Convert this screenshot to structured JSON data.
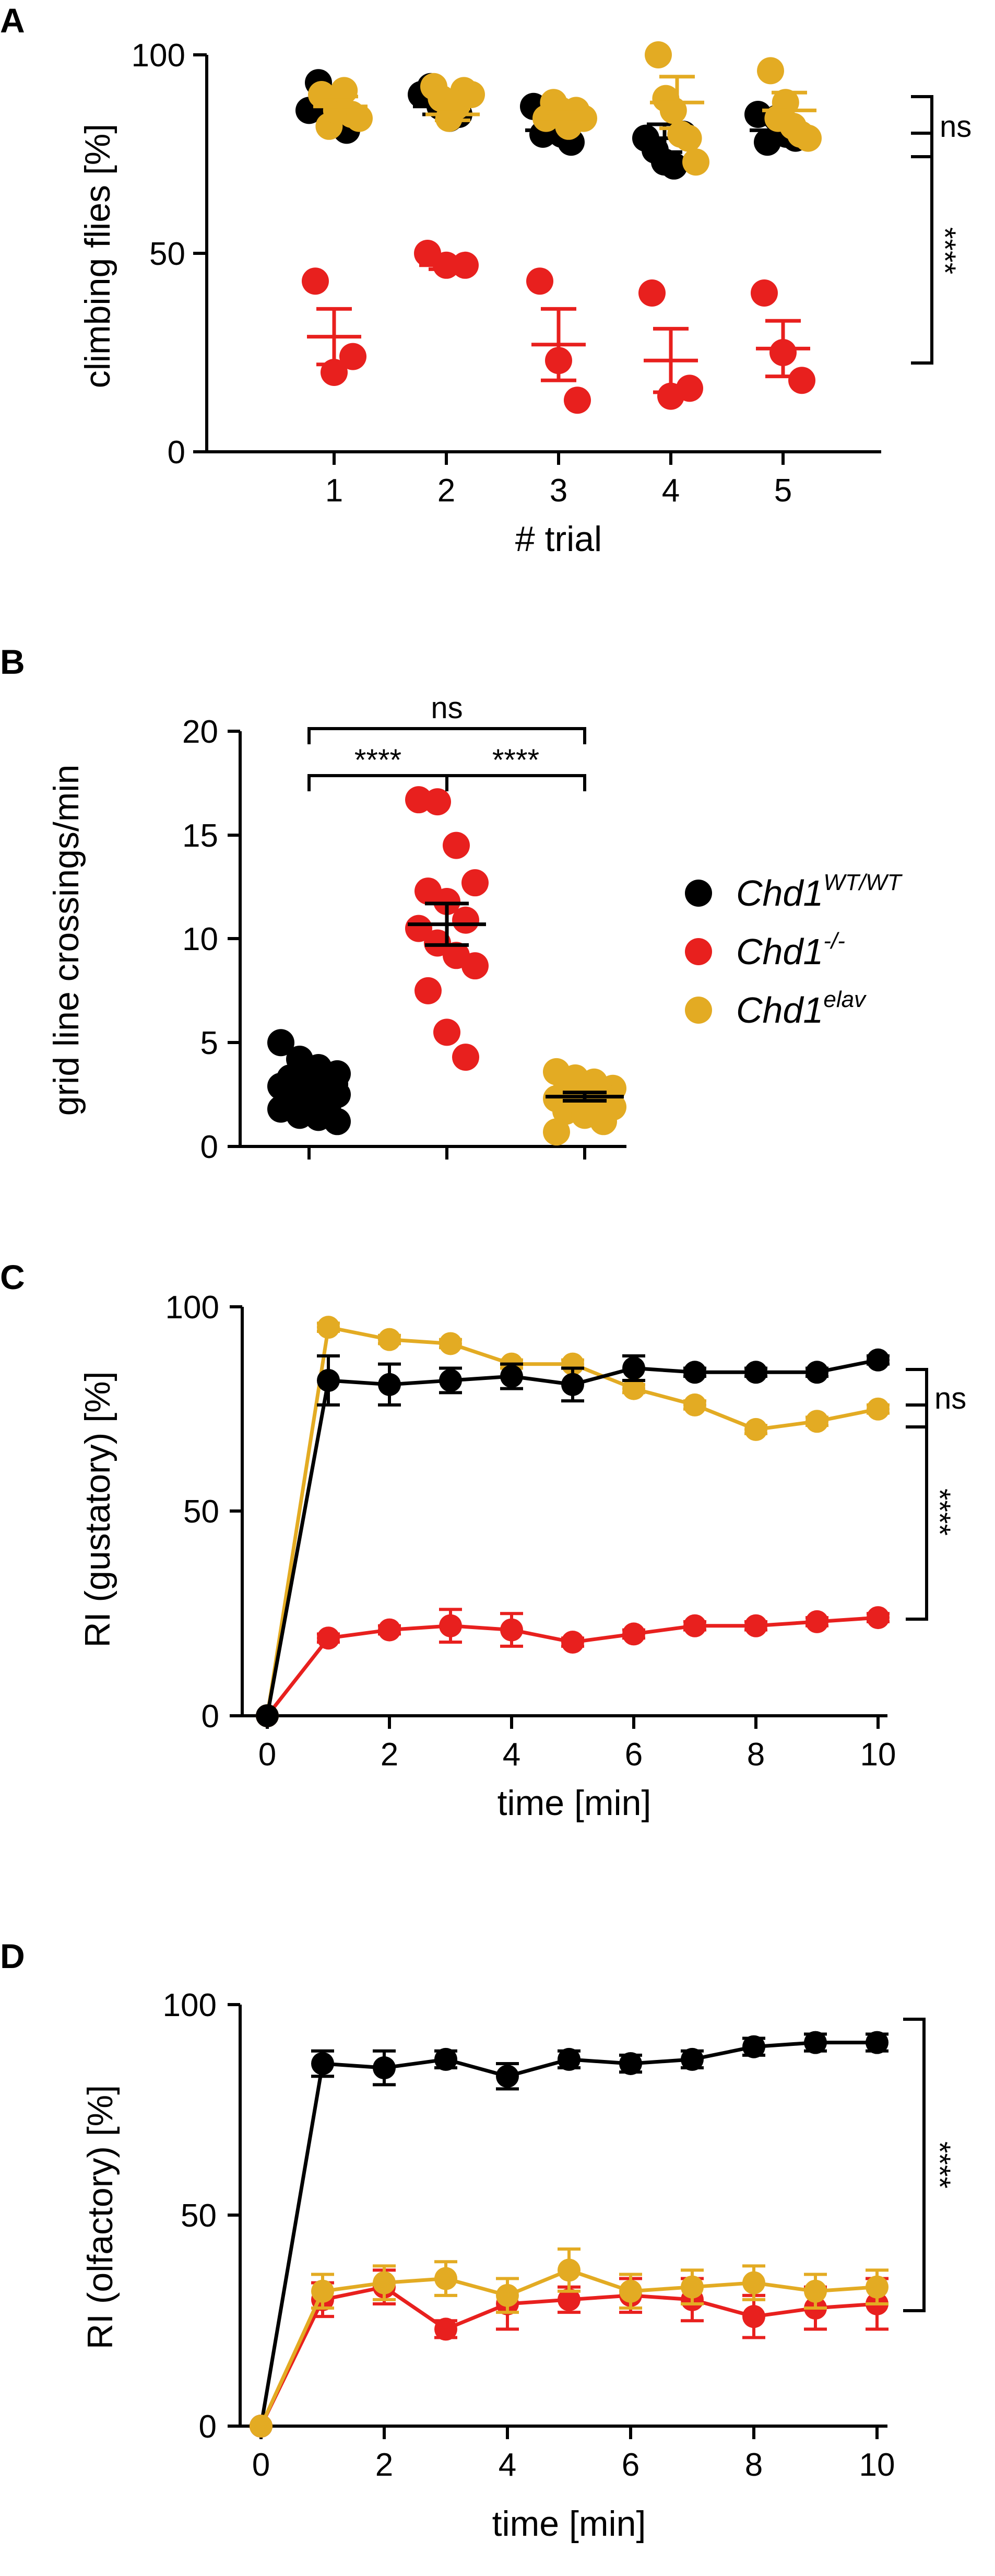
{
  "series_colors": {
    "WT": "#000000",
    "KO": "#e8201e",
    "ELAV": "#e3ab23"
  },
  "legend": [
    {
      "key": "WT",
      "base": "Chd1",
      "sup": "WT/WT"
    },
    {
      "key": "KO",
      "base": "Chd1",
      "sup": "-/-"
    },
    {
      "key": "ELAV",
      "base": "Chd1",
      "sup": "elav"
    }
  ],
  "chart_data": [
    {
      "panel": "A",
      "type": "scatter",
      "title": "",
      "xlabel": "# trial",
      "ylabel": "climbing flies [%]",
      "ylim": [
        0,
        100
      ],
      "yticks": [
        0,
        50,
        100
      ],
      "categories": [
        "1",
        "2",
        "3",
        "4",
        "5"
      ],
      "series": [
        {
          "key": "WT",
          "points": [
            [
              86,
              93,
              85,
              84,
              81
            ],
            [
              90,
              92,
              87,
              84,
              85
            ],
            [
              87,
              80,
              83,
              80,
              78
            ],
            [
              79,
              76,
              73,
              72,
              80
            ],
            [
              85,
              78,
              84,
              80,
              79
            ]
          ],
          "mean": [
            86,
            87,
            81,
            79,
            81
          ],
          "sem": [
            1.5,
            2,
            1.5,
            3.5,
            1.5
          ]
        },
        {
          "key": "KO",
          "points": [
            [
              43,
              20,
              24
            ],
            [
              50,
              47,
              47
            ],
            [
              43,
              23,
              13
            ],
            [
              40,
              14,
              16
            ],
            [
              40,
              25,
              18
            ]
          ],
          "mean": [
            29,
            47,
            27,
            23,
            26
          ],
          "sem": [
            7,
            1,
            9,
            8,
            7
          ]
        },
        {
          "key": "ELAV",
          "points": [
            [
              90,
              82,
              86,
              91,
              85,
              84
            ],
            [
              92,
              89,
              84,
              87,
              91,
              90
            ],
            [
              84,
              88,
              86,
              82,
              86,
              84
            ],
            [
              100,
              89,
              86,
              80,
              79,
              73
            ],
            [
              96,
              84,
              88,
              82,
              80,
              79
            ]
          ],
          "mean": [
            87,
            85,
            84,
            88,
            86
          ],
          "sem": [
            2.5,
            1.5,
            1.5,
            6.5,
            4.5
          ]
        }
      ],
      "annotations": [
        {
          "text": "ns",
          "between": [
            "WT",
            "ELAV"
          ]
        },
        {
          "text": "****",
          "between": [
            "WT/ELAV",
            "KO"
          ]
        }
      ]
    },
    {
      "panel": "B",
      "type": "scatter",
      "title": "",
      "xlabel": "",
      "ylabel": "grid line crossings/min",
      "ylim": [
        0,
        20
      ],
      "yticks": [
        0,
        5,
        10,
        15,
        20
      ],
      "categories": [
        "Chd1 WT/WT",
        "Chd1 -/-",
        "Chd1 elav"
      ],
      "series": [
        {
          "key": "WT",
          "values": [
            5.0,
            4.2,
            3.8,
            3.5,
            3.3,
            3.2,
            3.0,
            2.9,
            2.8,
            2.6,
            2.5,
            2.4,
            2.2,
            2.0,
            1.8,
            1.5,
            1.4,
            1.2
          ],
          "mean": 3.0,
          "sem": 0.3
        },
        {
          "key": "KO",
          "values": [
            16.7,
            16.6,
            14.5,
            12.7,
            12.3,
            11.8,
            10.9,
            10.5,
            9.8,
            9.2,
            8.7,
            7.5,
            5.5,
            4.3
          ],
          "mean": 10.7,
          "sem": 1.0
        },
        {
          "key": "ELAV",
          "values": [
            3.6,
            3.3,
            3.1,
            2.8,
            2.7,
            2.5,
            2.4,
            2.3,
            2.2,
            2.0,
            1.9,
            1.7,
            1.5,
            1.2,
            0.7
          ],
          "mean": 2.4,
          "sem": 0.2
        }
      ],
      "annotations": [
        {
          "text": "****",
          "between": [
            "Chd1 WT/WT",
            "Chd1 -/-"
          ]
        },
        {
          "text": "****",
          "between": [
            "Chd1 -/-",
            "Chd1 elav"
          ]
        },
        {
          "text": "ns",
          "between": [
            "Chd1 WT/WT",
            "Chd1 elav"
          ]
        }
      ]
    },
    {
      "panel": "C",
      "type": "line",
      "title": "",
      "xlabel": "time [min]",
      "ylabel": "RI (gustatory) [%]",
      "xlim": [
        0,
        10
      ],
      "xticks": [
        0,
        2,
        4,
        6,
        8,
        10
      ],
      "ylim": [
        0,
        100
      ],
      "yticks": [
        0,
        50,
        100
      ],
      "x": [
        0,
        1,
        2,
        3,
        4,
        5,
        6,
        7,
        8,
        9,
        10
      ],
      "series": [
        {
          "key": "WT",
          "values": [
            0,
            82,
            81,
            82,
            83,
            81,
            85,
            84,
            84,
            84,
            87
          ],
          "err": [
            0,
            6,
            5,
            3,
            3,
            4,
            3,
            1,
            1,
            1,
            1
          ]
        },
        {
          "key": "ELAV",
          "values": [
            0,
            95,
            92,
            91,
            86,
            86,
            80,
            76,
            70,
            72,
            75
          ],
          "err": [
            0,
            1,
            1,
            1,
            1,
            1,
            1,
            1,
            1,
            1,
            1
          ]
        },
        {
          "key": "KO",
          "values": [
            0,
            19,
            21,
            22,
            21,
            18,
            20,
            22,
            22,
            23,
            24
          ],
          "err": [
            0,
            1,
            1,
            4,
            4,
            1,
            1,
            1,
            1,
            1,
            1
          ]
        }
      ],
      "annotations": [
        {
          "text": "ns",
          "between": [
            "WT",
            "ELAV"
          ]
        },
        {
          "text": "****",
          "between": [
            "WT/ELAV",
            "KO"
          ]
        }
      ]
    },
    {
      "panel": "D",
      "type": "line",
      "title": "",
      "xlabel": "time [min]",
      "ylabel": "RI (olfactory) [%]",
      "xlim": [
        0,
        10
      ],
      "xticks": [
        0,
        2,
        4,
        6,
        8,
        10
      ],
      "ylim": [
        0,
        100
      ],
      "yticks": [
        0,
        50,
        100
      ],
      "x": [
        0,
        1,
        2,
        3,
        4,
        5,
        6,
        7,
        8,
        9,
        10
      ],
      "series": [
        {
          "key": "WT",
          "values": [
            0,
            86,
            85,
            87,
            83,
            87,
            86,
            87,
            90,
            91,
            91
          ],
          "err": [
            0,
            3,
            4,
            2,
            3,
            2,
            2,
            2,
            2,
            2,
            2
          ]
        },
        {
          "key": "KO",
          "values": [
            0,
            30,
            33,
            23,
            29,
            30,
            31,
            30,
            26,
            28,
            29
          ],
          "err": [
            0,
            4,
            4,
            2,
            6,
            3,
            4,
            5,
            5,
            5,
            6
          ]
        },
        {
          "key": "ELAV",
          "values": [
            0,
            32,
            34,
            35,
            31,
            37,
            32,
            33,
            34,
            32,
            33
          ],
          "err": [
            0,
            4,
            4,
            4,
            4,
            5,
            4,
            4,
            4,
            4,
            4
          ]
        }
      ],
      "annotations": [
        {
          "text": "****",
          "between": [
            "WT",
            "KO/ELAV"
          ]
        }
      ]
    }
  ]
}
